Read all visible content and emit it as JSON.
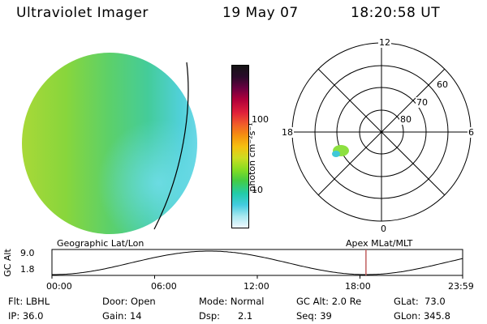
{
  "header": {
    "instrument": "Ultraviolet Imager",
    "date": "19 May 07",
    "time": "18:20:58 UT"
  },
  "colorbar": {
    "unit_label": "photon cm⁻²s⁻¹",
    "ticks": [
      "100",
      "10"
    ],
    "colors": [
      "#141414",
      "#2a0a2a",
      "#6a0040",
      "#b0003a",
      "#e0203a",
      "#f05a2a",
      "#f59010",
      "#f5c010",
      "#ccdd22",
      "#88dd22",
      "#44cc44",
      "#22ccaa",
      "#44cce0",
      "#a8e8f0",
      "#f0f8ff"
    ]
  },
  "polar_plot": {
    "labels_mlt": [
      "12",
      "18",
      "6",
      "0"
    ],
    "labels_mlat": [
      "60",
      "70",
      "80"
    ]
  },
  "timeline": {
    "left_title": "Geographic Lat/Lon",
    "right_title": "Apex  MLat/MLT",
    "y_axis_label": "GC Alt",
    "y_ticks": [
      "9.0",
      "1.8"
    ],
    "x_ticks": [
      "00:00",
      "06:00",
      "12:00",
      "18:00",
      "23:59"
    ],
    "marker_time_hours": 18.35,
    "marker_color": "#c06060"
  },
  "status": {
    "flt": "Flt: LBHL",
    "ip": "IP: 36.0",
    "door": "Door: Open",
    "gain": "Gain: 14",
    "mode": "Mode: Normal",
    "dsp": "Dsp:      2.1",
    "gc_alt": "GC Alt: 2.0 Re",
    "seq": "Seq: 39",
    "glat": "GLat:  73.0",
    "glon": "GLon: 345.8"
  }
}
